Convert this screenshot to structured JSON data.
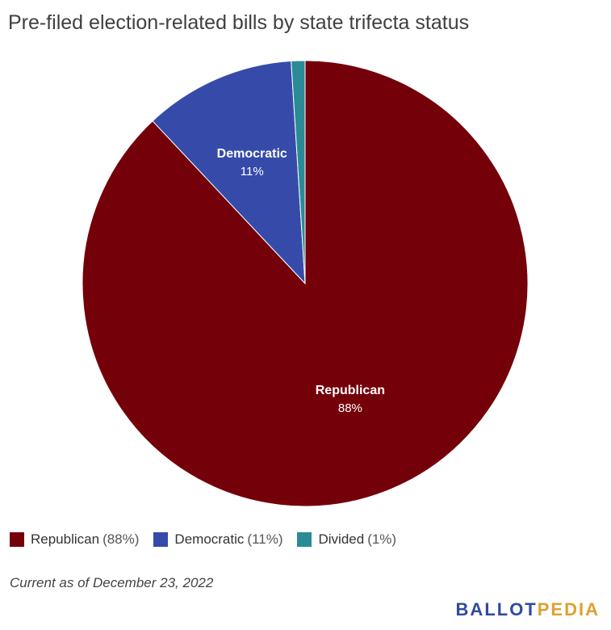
{
  "title": "Pre-filed election-related bills by state trifecta status",
  "chart_data": {
    "type": "pie",
    "title": "Pre-filed election-related bills by state trifecta status",
    "slices": [
      {
        "name": "Republican",
        "value": 88,
        "label": "88%",
        "color": "#74000a"
      },
      {
        "name": "Democratic",
        "value": 11,
        "label": "11%",
        "color": "#364ba9"
      },
      {
        "name": "Divided",
        "value": 1,
        "label": "1%",
        "color": "#2a8b96"
      }
    ],
    "start": "12 o'clock",
    "direction": "clockwise",
    "legend_placement": "bottom-left"
  },
  "legend": [
    {
      "name": "Republican",
      "pct": "(88%)",
      "color": "#74000a"
    },
    {
      "name": "Democratic",
      "pct": "(11%)",
      "color": "#364ba9"
    },
    {
      "name": "Divided",
      "pct": "(1%)",
      "color": "#2a8b96"
    }
  ],
  "footnote": "Current as of December 23, 2022",
  "logo": {
    "part1": "BALLOT",
    "part2": "PEDIA"
  }
}
